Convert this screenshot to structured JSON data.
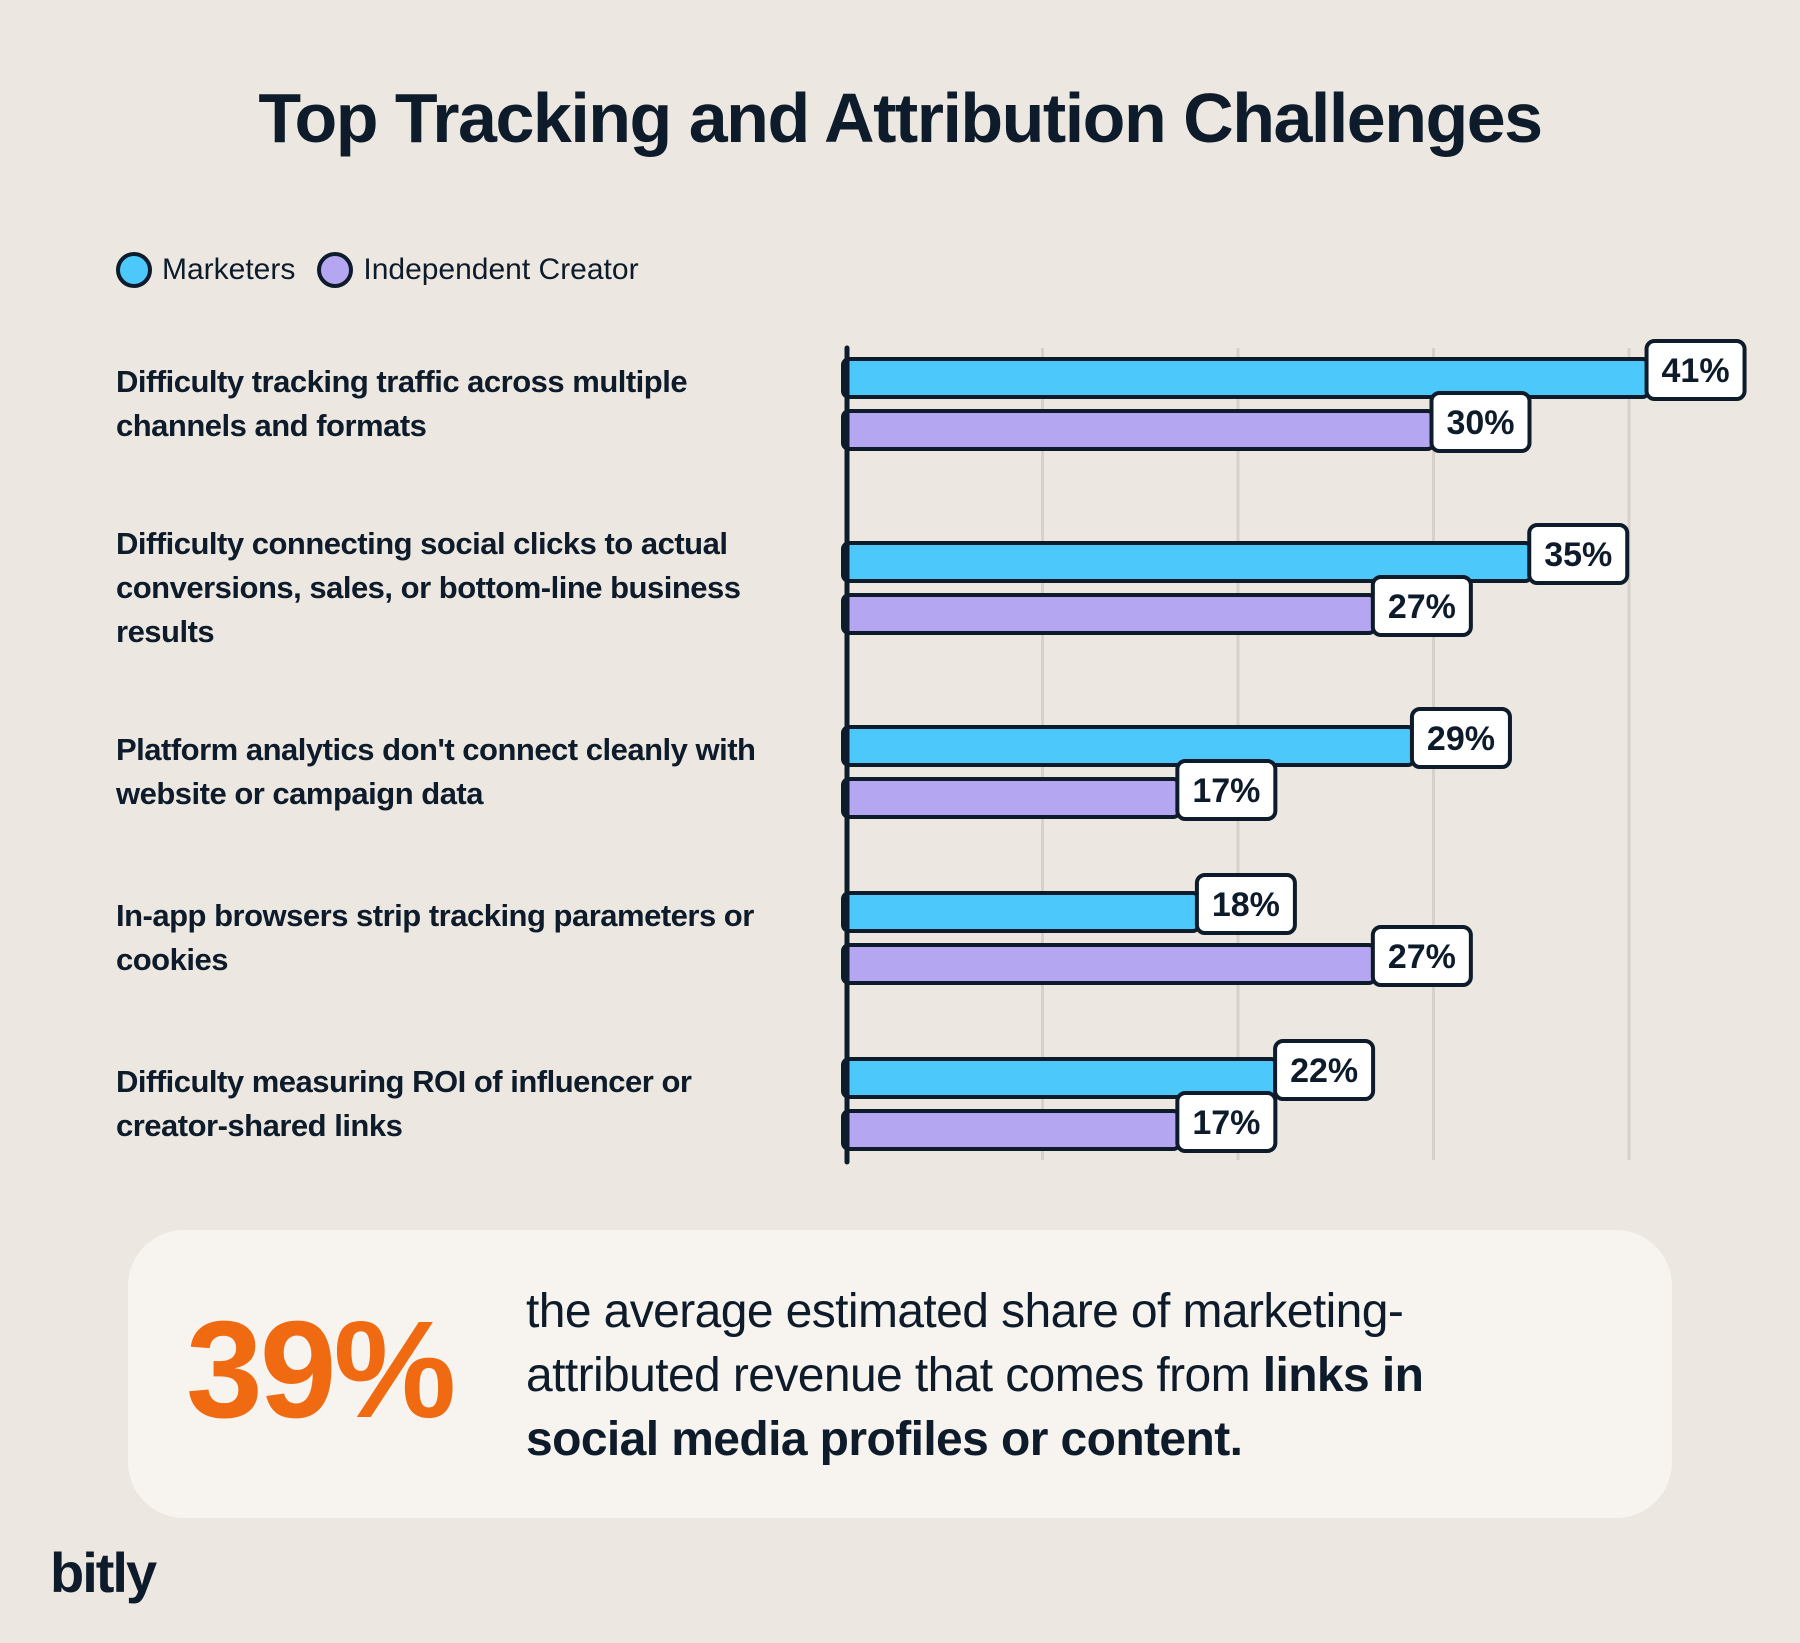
{
  "chart_data": {
    "type": "bar",
    "orientation": "horizontal",
    "title": "Top Tracking and Attribution Challenges",
    "categories": [
      "Difficulty tracking traffic across multiple channels and formats",
      "Difficulty connecting social clicks to actual conversions, sales, or bottom-line business results",
      "Platform analytics don't connect cleanly with website or campaign data",
      "In-app browsers strip tracking parameters or cookies",
      "Difficulty measuring ROI of influencer or creator-shared links"
    ],
    "series": [
      {
        "name": "Marketers",
        "color": "#4cc8fb",
        "values": [
          41,
          35,
          29,
          18,
          22
        ]
      },
      {
        "name": "Independent Creator",
        "color": "#b4a6f0",
        "values": [
          30,
          27,
          17,
          27,
          17
        ]
      }
    ],
    "value_suffix": "%",
    "xlim": [
      0,
      40
    ],
    "grid": true,
    "legend_position": "top-left"
  },
  "callout": {
    "stat": "39%",
    "text_plain": "the average estimated share of marketing-attributed revenue that comes from ",
    "text_bold": "links in social media profiles or content."
  },
  "brand": "bitly",
  "colors": {
    "background": "#ece8e1",
    "ink": "#0d1b2a",
    "accent_orange": "#f06a12",
    "callout_bg": "#f7f4ef",
    "label_bg": "#ffffff",
    "gridline": "#d6d1c9"
  }
}
